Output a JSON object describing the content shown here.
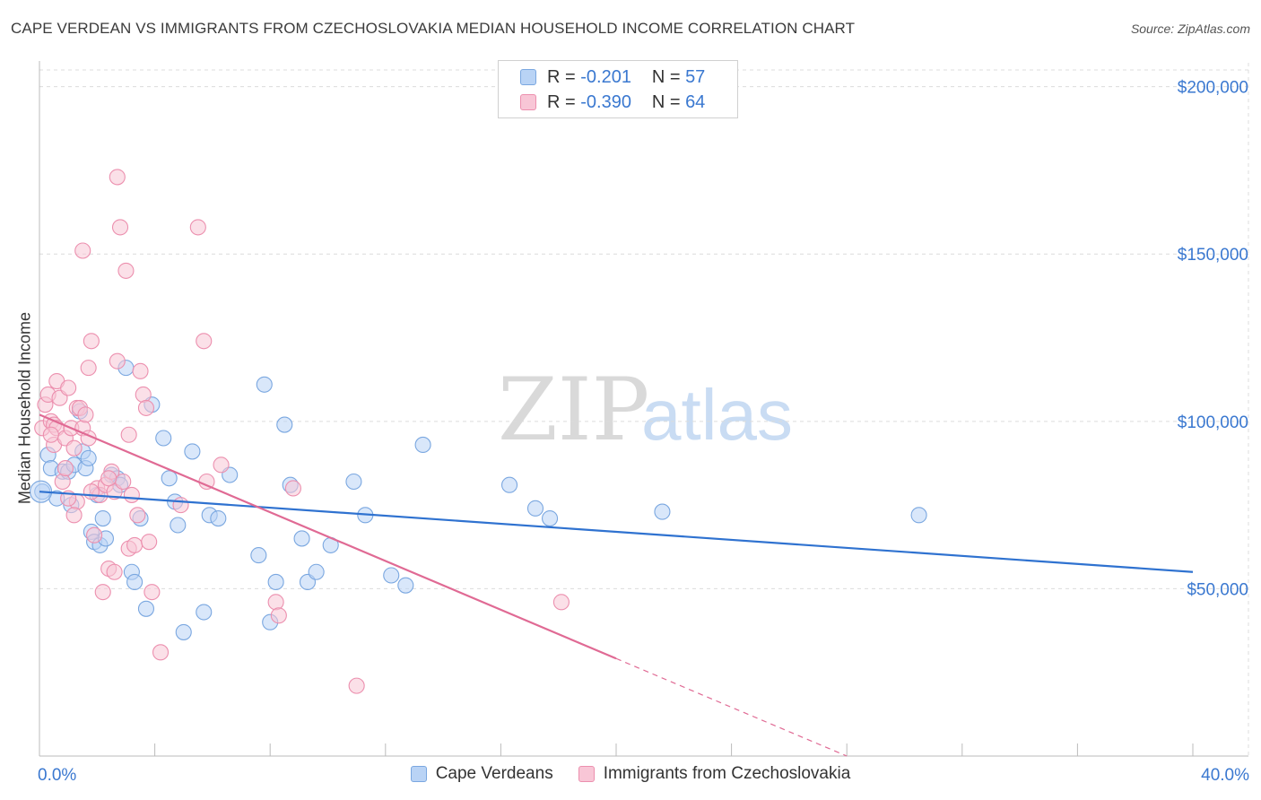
{
  "title": "CAPE VERDEAN VS IMMIGRANTS FROM CZECHOSLOVAKIA MEDIAN HOUSEHOLD INCOME CORRELATION CHART",
  "source": "Source: ZipAtlas.com",
  "watermark": {
    "zip": "ZIP",
    "atlas": "atlas"
  },
  "legend_top": [
    {
      "r_label": "R =",
      "r_value": "-0.201",
      "n_label": "N =",
      "n_value": "57"
    },
    {
      "r_label": "R =",
      "r_value": "-0.390",
      "n_label": "N =",
      "n_value": "64"
    }
  ],
  "colors": {
    "blue_fill": "#b9d3f5",
    "blue_stroke": "#7aa7e0",
    "blue_line": "#2f72d0",
    "pink_fill": "#f8c6d6",
    "pink_stroke": "#ec8fae",
    "pink_line": "#e06a94",
    "tick_text": "#3a78d0",
    "grid": "#dcdcdc"
  },
  "chart_data": {
    "type": "scatter",
    "title": "CAPE VERDEAN VS IMMIGRANTS FROM CZECHOSLOVAKIA MEDIAN HOUSEHOLD INCOME CORRELATION CHART",
    "xlabel": "",
    "ylabel": "Median Household Income",
    "xlim": [
      0,
      40
    ],
    "ylim": [
      0,
      205000
    ],
    "x_tick_labels": [
      "0.0%",
      "40.0%"
    ],
    "y_ticks": [
      50000,
      100000,
      150000,
      200000
    ],
    "y_tick_labels": [
      "$50,000",
      "$100,000",
      "$150,000",
      "$200,000"
    ],
    "series": [
      {
        "name": "Cape Verdeans",
        "color": "blue",
        "R": -0.201,
        "N": 57,
        "trend": {
          "x0": 0,
          "y0": 79000,
          "x1": 40,
          "y1": 55000,
          "solid_until": 40
        },
        "points": [
          [
            0.1,
            79000
          ],
          [
            0.3,
            90000
          ],
          [
            0.4,
            86000
          ],
          [
            0.6,
            77000
          ],
          [
            0.8,
            85000
          ],
          [
            1.0,
            85000
          ],
          [
            1.1,
            75000
          ],
          [
            1.2,
            87000
          ],
          [
            1.4,
            103000
          ],
          [
            1.5,
            91000
          ],
          [
            1.6,
            86000
          ],
          [
            1.7,
            89000
          ],
          [
            1.8,
            67000
          ],
          [
            1.9,
            64000
          ],
          [
            2.0,
            78000
          ],
          [
            2.1,
            63000
          ],
          [
            2.2,
            71000
          ],
          [
            2.3,
            65000
          ],
          [
            2.5,
            84000
          ],
          [
            2.7,
            83000
          ],
          [
            2.8,
            81000
          ],
          [
            3.0,
            116000
          ],
          [
            3.2,
            55000
          ],
          [
            3.3,
            52000
          ],
          [
            3.5,
            71000
          ],
          [
            3.7,
            44000
          ],
          [
            3.9,
            105000
          ],
          [
            4.3,
            95000
          ],
          [
            4.5,
            83000
          ],
          [
            4.7,
            76000
          ],
          [
            4.8,
            69000
          ],
          [
            5.0,
            37000
          ],
          [
            5.3,
            91000
          ],
          [
            5.7,
            43000
          ],
          [
            5.9,
            72000
          ],
          [
            6.2,
            71000
          ],
          [
            6.6,
            84000
          ],
          [
            7.6,
            60000
          ],
          [
            7.8,
            111000
          ],
          [
            8.0,
            40000
          ],
          [
            8.2,
            52000
          ],
          [
            8.5,
            99000
          ],
          [
            8.7,
            81000
          ],
          [
            9.1,
            65000
          ],
          [
            9.3,
            52000
          ],
          [
            9.6,
            55000
          ],
          [
            10.1,
            63000
          ],
          [
            10.9,
            82000
          ],
          [
            11.3,
            72000
          ],
          [
            12.2,
            54000
          ],
          [
            12.7,
            51000
          ],
          [
            13.3,
            93000
          ],
          [
            16.3,
            81000
          ],
          [
            17.2,
            74000
          ],
          [
            17.7,
            71000
          ],
          [
            21.6,
            73000
          ],
          [
            30.5,
            72000
          ]
        ]
      },
      {
        "name": "Immigrants from Czechoslovakia",
        "color": "pink",
        "R": -0.39,
        "N": 64,
        "trend": {
          "x0": 0,
          "y0": 102000,
          "x1": 28,
          "y1": 0,
          "solid_until": 20
        },
        "points": [
          [
            0.1,
            98000
          ],
          [
            0.2,
            105000
          ],
          [
            0.3,
            108000
          ],
          [
            0.4,
            100000
          ],
          [
            0.5,
            99000
          ],
          [
            0.5,
            93000
          ],
          [
            0.6,
            98000
          ],
          [
            0.6,
            112000
          ],
          [
            0.7,
            107000
          ],
          [
            0.8,
            82000
          ],
          [
            0.9,
            95000
          ],
          [
            1.0,
            110000
          ],
          [
            1.1,
            98000
          ],
          [
            1.2,
            92000
          ],
          [
            1.3,
            104000
          ],
          [
            1.3,
            76000
          ],
          [
            1.4,
            104000
          ],
          [
            1.5,
            98000
          ],
          [
            1.5,
            151000
          ],
          [
            1.6,
            102000
          ],
          [
            1.7,
            116000
          ],
          [
            1.7,
            95000
          ],
          [
            1.8,
            124000
          ],
          [
            1.9,
            66000
          ],
          [
            2.0,
            80000
          ],
          [
            2.1,
            78000
          ],
          [
            2.2,
            49000
          ],
          [
            2.3,
            81000
          ],
          [
            2.4,
            56000
          ],
          [
            2.5,
            85000
          ],
          [
            2.6,
            79000
          ],
          [
            2.6,
            55000
          ],
          [
            2.7,
            118000
          ],
          [
            2.7,
            173000
          ],
          [
            2.8,
            158000
          ],
          [
            2.9,
            82000
          ],
          [
            3.0,
            145000
          ],
          [
            3.1,
            96000
          ],
          [
            3.1,
            62000
          ],
          [
            3.2,
            78000
          ],
          [
            3.3,
            63000
          ],
          [
            3.4,
            72000
          ],
          [
            3.5,
            115000
          ],
          [
            3.6,
            108000
          ],
          [
            3.7,
            104000
          ],
          [
            3.8,
            64000
          ],
          [
            3.9,
            49000
          ],
          [
            4.2,
            31000
          ],
          [
            4.9,
            75000
          ],
          [
            5.5,
            158000
          ],
          [
            5.7,
            124000
          ],
          [
            5.8,
            82000
          ],
          [
            6.3,
            87000
          ],
          [
            8.2,
            46000
          ],
          [
            8.3,
            42000
          ],
          [
            8.8,
            80000
          ],
          [
            11.0,
            21000
          ],
          [
            18.1,
            46000
          ],
          [
            0.4,
            96000
          ],
          [
            0.9,
            86000
          ],
          [
            1.2,
            72000
          ],
          [
            1.8,
            79000
          ],
          [
            2.4,
            83000
          ],
          [
            1.0,
            77000
          ]
        ]
      }
    ]
  },
  "bottom_legend": [
    "Cape Verdeans",
    "Immigrants from Czechoslovakia"
  ]
}
